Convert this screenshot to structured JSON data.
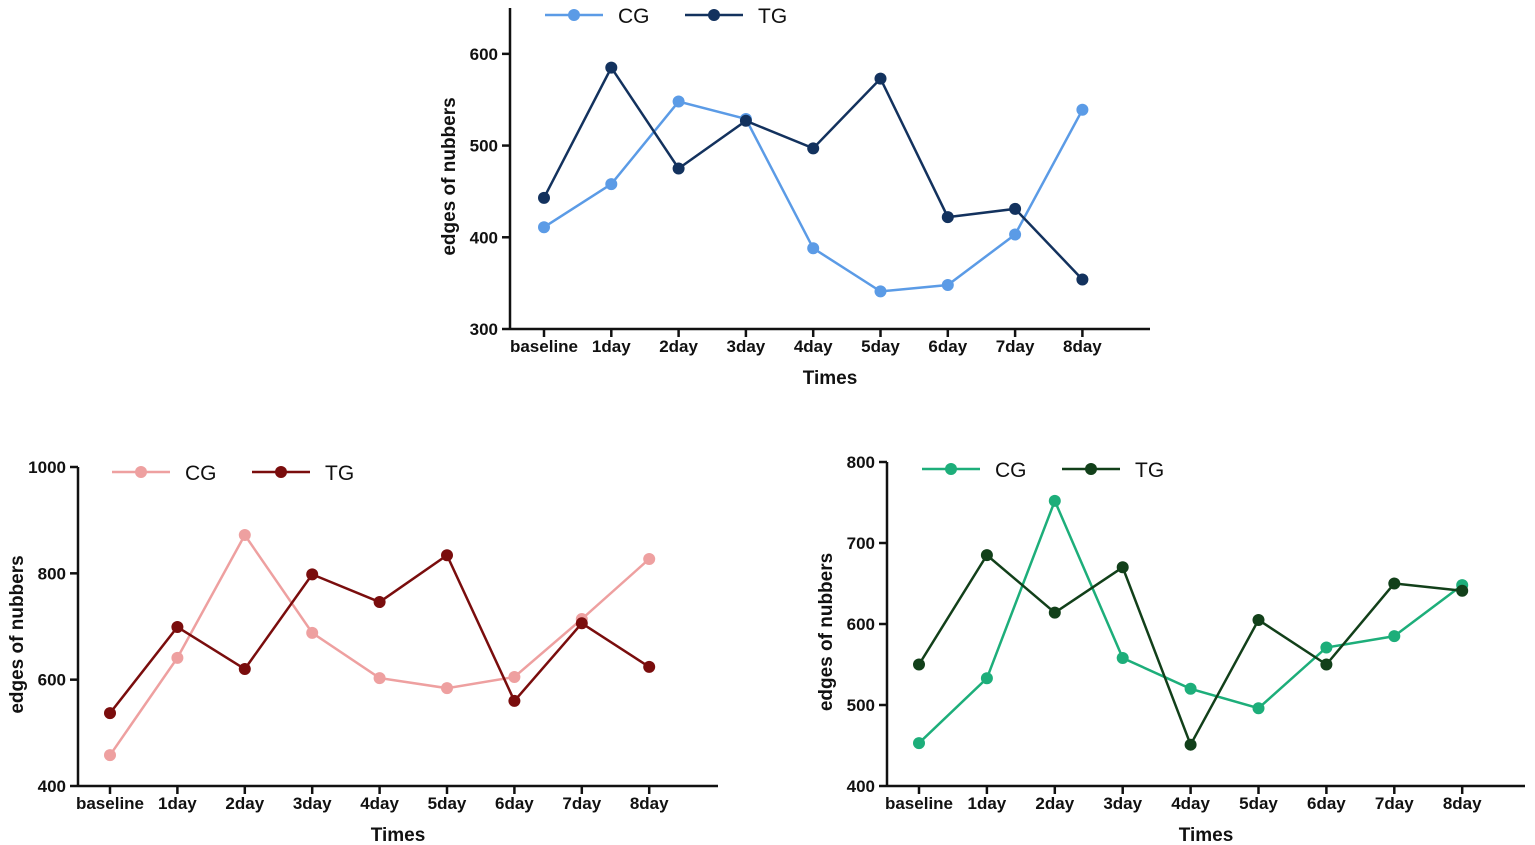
{
  "chart_data": [
    {
      "type": "line",
      "title": "",
      "xlabel": "Times",
      "ylabel": "edges of nubbers",
      "categories": [
        "baseline",
        "1day",
        "2day",
        "3day",
        "4day",
        "5day",
        "6day",
        "7day",
        "8day"
      ],
      "ylim": [
        300,
        650
      ],
      "yticks": [
        300,
        400,
        500,
        600
      ],
      "legend": "top",
      "grid": false,
      "series": [
        {
          "name": "CG",
          "color": "#5b9be6",
          "values": [
            411,
            458,
            548,
            529,
            388,
            341,
            348,
            403,
            539
          ]
        },
        {
          "name": "TG",
          "color": "#13325e",
          "values": [
            443,
            585,
            475,
            527,
            497,
            573,
            422,
            431,
            354
          ]
        }
      ]
    },
    {
      "type": "line",
      "title": "",
      "xlabel": "Times",
      "ylabel": "edges of nubbers",
      "categories": [
        "baseline",
        "1day",
        "2day",
        "3day",
        "4day",
        "5day",
        "6day",
        "7day",
        "8day"
      ],
      "ylim": [
        400,
        1000
      ],
      "yticks": [
        400,
        600,
        800,
        1000
      ],
      "legend": "top",
      "grid": false,
      "series": [
        {
          "name": "CG",
          "color": "#eea0a0",
          "values": [
            458,
            641,
            872,
            688,
            603,
            584,
            605,
            714,
            827
          ]
        },
        {
          "name": "TG",
          "color": "#7a0d0d",
          "values": [
            537,
            699,
            620,
            798,
            746,
            834,
            560,
            706,
            624
          ]
        }
      ]
    },
    {
      "type": "line",
      "title": "",
      "xlabel": "Times",
      "ylabel": "edges of nubbers",
      "categories": [
        "baseline",
        "1day",
        "2day",
        "3day",
        "4day",
        "5day",
        "6day",
        "7day",
        "8day"
      ],
      "ylim": [
        400,
        800
      ],
      "yticks": [
        400,
        500,
        600,
        700,
        800
      ],
      "legend": "top",
      "grid": false,
      "series": [
        {
          "name": "CG",
          "color": "#1dae7a",
          "values": [
            453,
            533,
            752,
            558,
            520,
            496,
            571,
            585,
            648
          ]
        },
        {
          "name": "TG",
          "color": "#12401a",
          "values": [
            550,
            685,
            614,
            670,
            451,
            605,
            550,
            650,
            641
          ]
        }
      ]
    }
  ]
}
